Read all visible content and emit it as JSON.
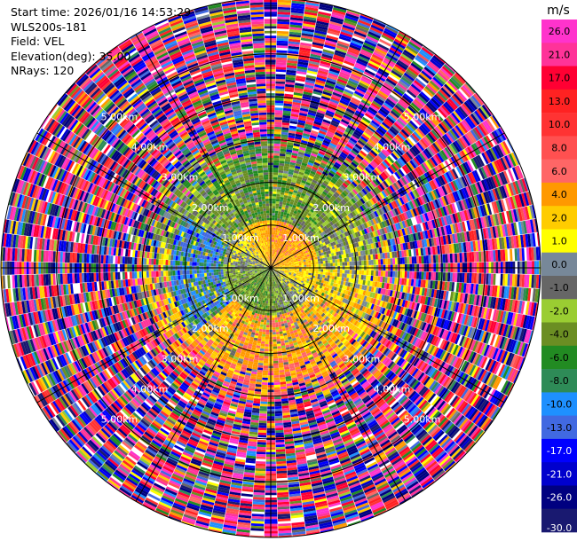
{
  "header": {
    "start_time": "Start time: 2026/01/16 14:53:29",
    "instrument": "WLS200s-181",
    "field": "Field: VEL",
    "elevation": "Elevation(deg): 35.00",
    "nrays": "NRays: 120"
  },
  "chart_data": {
    "type": "ppi_polar_heatmap",
    "field": "VEL",
    "units": "m/s",
    "n_rays": 120,
    "elevation_deg": 35.0,
    "range_unit": "km",
    "max_range_km": 6.3,
    "range_ring_labels": [
      "1.00km",
      "2.00km",
      "3.00km",
      "4.00km",
      "5.00km"
    ],
    "range_ring_km": [
      1,
      2,
      3,
      4,
      5
    ],
    "range_ring_label_angles_deg": [
      45,
      135,
      225,
      315
    ],
    "azimuth_spoke_step_deg": 30,
    "velocity_zones": [
      {
        "name": "inner_core",
        "range_km": [
          0.0,
          1.1
        ],
        "note": "yellow/orange positive to north-west & east; green negative to south"
      },
      {
        "name": "near_field",
        "range_km": [
          1.1,
          2.3
        ],
        "note": "yellow/orange positive to south & south-east; green negative to north; blue patch to west"
      },
      {
        "name": "transition",
        "range_km": [
          2.3,
          3.2
        ],
        "note": "mixed, increasing noise"
      },
      {
        "name": "noise_far_field",
        "range_km": [
          3.2,
          6.3
        ],
        "note": "random values across full color range"
      }
    ],
    "colorbar": {
      "label": "m/s",
      "tick_labels": [
        "26.0",
        "21.0",
        "17.0",
        "13.0",
        "10.0",
        "8.0",
        "6.0",
        "4.0",
        "2.0",
        "1.0",
        "0.0",
        "-1.0",
        "-2.0",
        "-4.0",
        "-6.0",
        "-8.0",
        "-10.0",
        "-13.0",
        "-17.0",
        "-21.0",
        "-26.0",
        "-30.0"
      ],
      "bounds": [
        30,
        26,
        21,
        17,
        13,
        10,
        8,
        6,
        4,
        2,
        1,
        0,
        -1,
        -2,
        -4,
        -6,
        -8,
        -10,
        -13,
        -17,
        -21,
        -26,
        -30
      ],
      "colors": [
        "#ff33cc",
        "#ff3399",
        "#ff0033",
        "#ff2222",
        "#ff3333",
        "#ff5050",
        "#ff6666",
        "#ff9900",
        "#ffcc00",
        "#ffff00",
        "#778899",
        "#666666",
        "#9acd32",
        "#6b8e23",
        "#228b22",
        "#2e8b57",
        "#1e90ff",
        "#4169e1",
        "#0000ff",
        "#0000cd",
        "#000080",
        "#191970"
      ]
    }
  }
}
